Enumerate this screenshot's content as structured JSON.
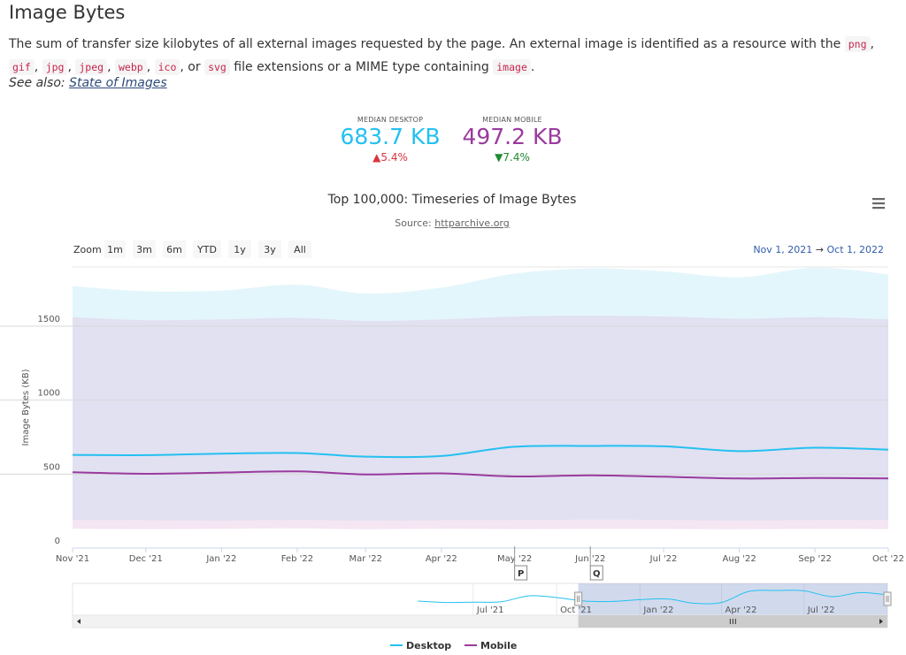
{
  "section": {
    "title": "Image Bytes",
    "desc_part1": "The sum of transfer size kilobytes of all external images requested by the page. An external image is identified as a resource with the",
    "code_png": "png",
    "code_gif": "gif",
    "code_jpg": "jpg",
    "code_jpeg": "jpeg",
    "code_webp": "webp",
    "code_ico": "ico",
    "or_text": ", or",
    "code_svg": "svg",
    "desc_part2": "file extensions or a MIME type containing",
    "code_image": "image",
    "see_also_label": "See also:",
    "see_also_link": "State of Images"
  },
  "metrics": {
    "desktop": {
      "label": "MEDIAN DESKTOP",
      "value": "683.7 KB",
      "change": "▲5.4%",
      "color": "#24c0f0",
      "change_color": "#d9363e"
    },
    "mobile": {
      "label": "MEDIAN MOBILE",
      "value": "497.2 KB",
      "change": "▼7.4%",
      "color": "#9a3a9e",
      "change_color": "#1e8a2e"
    }
  },
  "chart_data": {
    "type": "area",
    "title": "Top 100,000: Timeseries of Image Bytes",
    "subtitle_label": "Source:",
    "subtitle_link": "httparchive.org",
    "ylabel": "Image Bytes (KB)",
    "ylim": [
      0,
      1900
    ],
    "y_ticks": [
      "0",
      "500",
      "1000",
      "1500"
    ],
    "y_tick_values": [
      0,
      500,
      1000,
      1500
    ],
    "x_start": "2021-11-01",
    "x_end": "2022-10-01",
    "x_ticks": [
      {
        "date": "2021-11-01",
        "label": "Nov '21"
      },
      {
        "date": "2021-12-01",
        "label": "Dec '21"
      },
      {
        "date": "2022-01-01",
        "label": "Jan '22"
      },
      {
        "date": "2022-02-01",
        "label": "Feb '22"
      },
      {
        "date": "2022-03-01",
        "label": "Mar '22"
      },
      {
        "date": "2022-04-01",
        "label": "Apr '22"
      },
      {
        "date": "2022-05-01",
        "label": "May '22"
      },
      {
        "date": "2022-06-01",
        "label": "Jun '22"
      },
      {
        "date": "2022-07-01",
        "label": "Jul '22"
      },
      {
        "date": "2022-08-01",
        "label": "Aug '22"
      },
      {
        "date": "2022-09-01",
        "label": "Sep '22"
      },
      {
        "date": "2022-10-01",
        "label": "Oct '22"
      }
    ],
    "dates": [
      "2021-11-01",
      "2021-12-01",
      "2022-01-01",
      "2022-02-01",
      "2022-03-01",
      "2022-04-01",
      "2022-05-01",
      "2022-06-01",
      "2022-07-01",
      "2022-08-01",
      "2022-09-01",
      "2022-10-01"
    ],
    "series": [
      {
        "name": "Desktop",
        "color": "#24c0f0",
        "band_color": "#e3f6fc",
        "median": [
          630,
          628,
          638,
          642,
          618,
          622,
          685,
          690,
          688,
          655,
          678,
          665
        ],
        "p10": [
          190,
          188,
          186,
          190,
          185,
          188,
          190,
          192,
          190,
          185,
          190,
          188
        ],
        "p90": [
          1770,
          1735,
          1740,
          1780,
          1720,
          1760,
          1855,
          1890,
          1870,
          1830,
          1895,
          1850
        ]
      },
      {
        "name": "Mobile",
        "color": "#9a3a9e",
        "band_color": "#f3e2f2",
        "median": [
          512,
          502,
          510,
          518,
          498,
          505,
          484,
          492,
          482,
          470,
          474,
          470
        ],
        "p10": [
          130,
          128,
          130,
          133,
          127,
          131,
          128,
          130,
          129,
          127,
          130,
          128
        ],
        "p90": [
          1560,
          1540,
          1545,
          1555,
          1535,
          1545,
          1565,
          1570,
          1565,
          1550,
          1560,
          1545
        ]
      }
    ],
    "flags": [
      {
        "date": "2022-05-01",
        "label": "P"
      },
      {
        "date": "2022-06-01",
        "label": "Q"
      }
    ],
    "zoom": {
      "label": "Zoom",
      "buttons": [
        "1m",
        "3m",
        "6m",
        "YTD",
        "1y",
        "3y",
        "All"
      ]
    },
    "range": {
      "from": "Nov 1, 2021",
      "arrow": "→",
      "to": "Oct 1, 2022"
    },
    "navigator": {
      "x_ticks": [
        {
          "date": "2021-07-01",
          "label": "Jul '21"
        },
        {
          "date": "2021-10-01",
          "label": "Oct '21"
        },
        {
          "date": "2022-01-01",
          "label": "Jan '22"
        },
        {
          "date": "2022-04-01",
          "label": "Apr '22"
        },
        {
          "date": "2022-07-01",
          "label": "Jul '22"
        }
      ],
      "dates": [
        "2021-05-01",
        "2021-06-01",
        "2021-07-01",
        "2021-08-01",
        "2021-09-01",
        "2021-10-01",
        "2021-11-01",
        "2021-12-01",
        "2022-01-01",
        "2022-02-01",
        "2022-03-01",
        "2022-04-01",
        "2022-05-01",
        "2022-06-01",
        "2022-07-01",
        "2022-08-01",
        "2022-09-01",
        "2022-10-01"
      ],
      "values": [
        630,
        622,
        624,
        626,
        660,
        650,
        630,
        628,
        638,
        642,
        618,
        622,
        685,
        690,
        688,
        655,
        678,
        665
      ],
      "start": "2020-04-15",
      "end": "2022-10-01",
      "window_start": "2021-10-25",
      "window_end": "2022-10-01"
    },
    "legend": [
      "Desktop",
      "Mobile"
    ],
    "legend_position": "bottom-center",
    "grid": true
  }
}
